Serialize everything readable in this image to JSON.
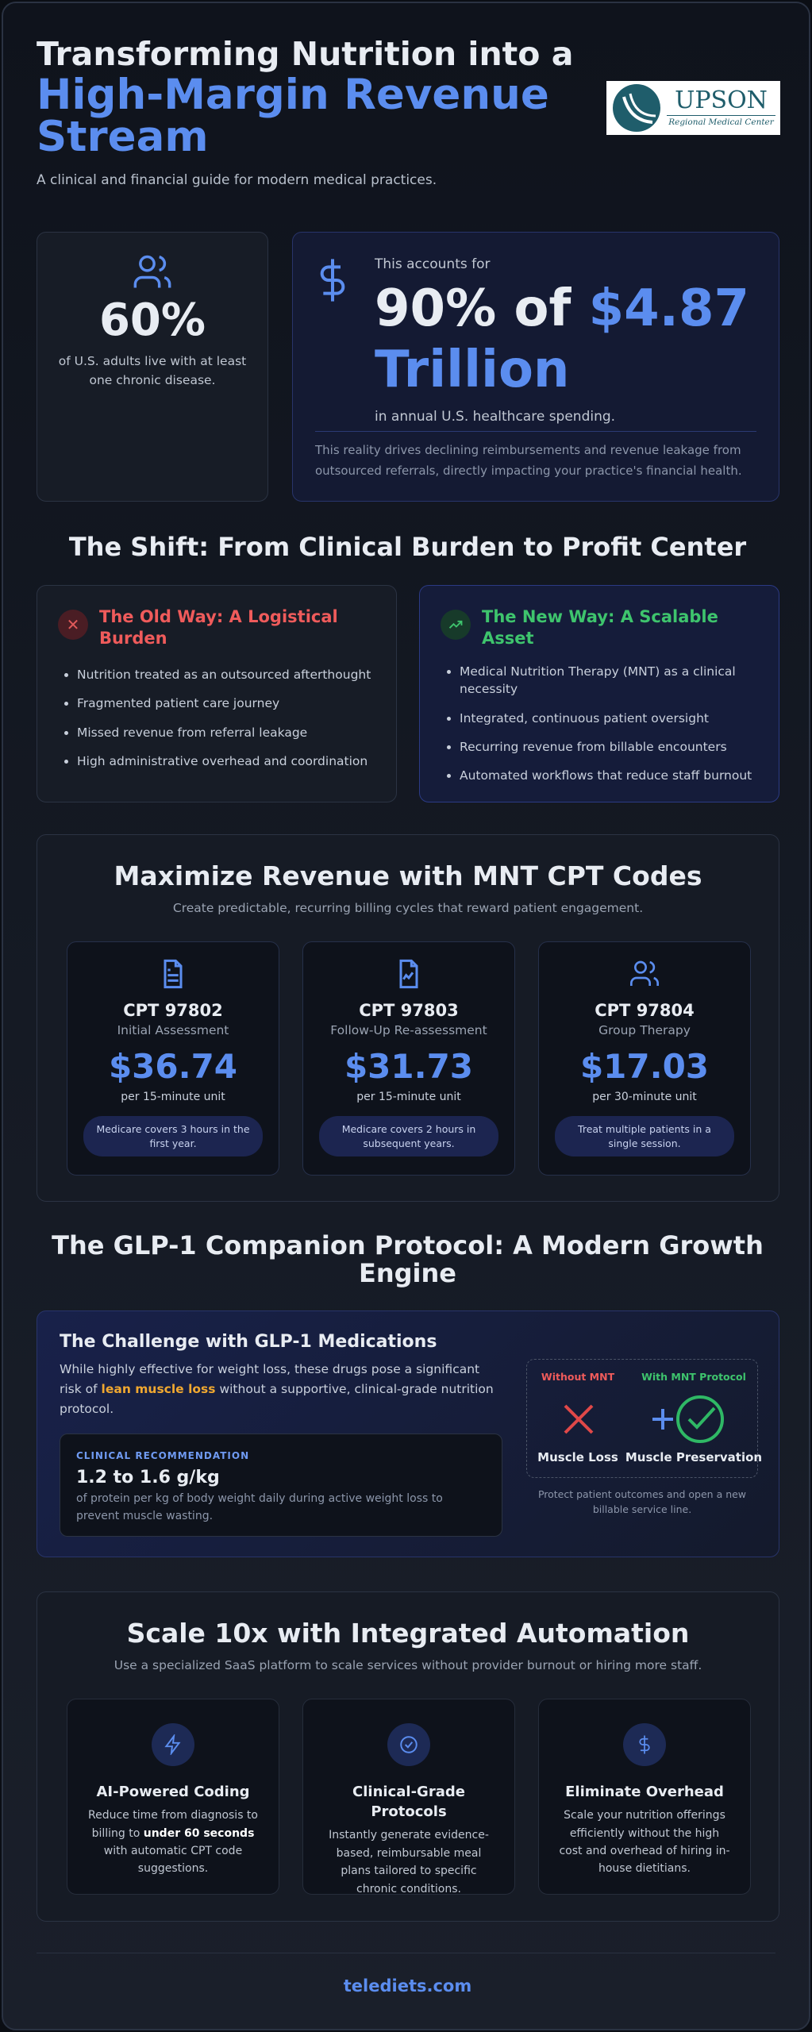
{
  "header": {
    "title_line1": "Transforming Nutrition into a",
    "title_highlight": "High-Margin Revenue Stream",
    "subtitle": "A clinical and financial guide for modern medical practices.",
    "logo": {
      "name": "UPSON",
      "tagline": "Regional Medical Center"
    }
  },
  "stats": {
    "adults": {
      "value": "60%",
      "text": "of U.S. adults live with at least one chronic disease."
    },
    "spending": {
      "lead": "This accounts for",
      "value_prefix": "90% of",
      "value_highlight": "$4.87 Trillion",
      "text": "in annual U.S. healthcare spending.",
      "note": "This reality drives declining reimbursements and revenue leakage from outsourced referrals, directly impacting your practice's financial health."
    }
  },
  "shift": {
    "title": "The Shift: From Clinical Burden to Profit Center",
    "old": {
      "title": "The Old Way: A Logistical Burden",
      "items": [
        "Nutrition treated as an outsourced afterthought",
        "Fragmented patient care journey",
        "Missed revenue from referral leakage",
        "High administrative overhead and coordination"
      ]
    },
    "new": {
      "title": "The New Way: A Scalable Asset",
      "items": [
        "Medical Nutrition Therapy (MNT) as a clinical necessity",
        "Integrated, continuous patient oversight",
        "Recurring revenue from billable encounters",
        "Automated workflows that reduce staff burnout"
      ]
    }
  },
  "cpt": {
    "title": "Maximize Revenue with MNT CPT Codes",
    "subtitle": "Create predictable, recurring billing cycles that reward patient engagement.",
    "codes": [
      {
        "code": "CPT 97802",
        "name": "Initial Assessment",
        "price": "$36.74",
        "unit": "per 15-minute unit",
        "note": "Medicare covers 3 hours in the first year."
      },
      {
        "code": "CPT 97803",
        "name": "Follow-Up Re-assessment",
        "price": "$31.73",
        "unit": "per 15-minute unit",
        "note": "Medicare covers 2 hours in subsequent years."
      },
      {
        "code": "CPT 97804",
        "name": "Group Therapy",
        "price": "$17.03",
        "unit": "per 30-minute unit",
        "note": "Treat multiple patients in a single session."
      }
    ]
  },
  "glp1": {
    "title": "The GLP-1 Companion Protocol: A Modern Growth Engine",
    "challenge": {
      "title": "The Challenge with GLP-1 Medications",
      "text_before": "While highly effective for weight loss, these drugs pose a significant risk of",
      "highlight": "lean muscle loss",
      "text_after": "without a supportive, clinical-grade nutrition protocol."
    },
    "recommendation": {
      "label": "CLINICAL RECOMMENDATION",
      "value": "1.2 to 1.6 g/kg",
      "text": "of protein per kg of body weight daily during active weight loss to prevent muscle wasting."
    },
    "comparison": {
      "without": "Without MNT",
      "with": "With MNT Protocol",
      "loss": "Muscle Loss",
      "preservation": "Muscle Preservation",
      "caption": "Protect patient outcomes and open a new billable service line."
    }
  },
  "automation": {
    "title": "Scale 10x with Integrated Automation",
    "subtitle": "Use a specialized SaaS platform to scale services without provider burnout or hiring more staff.",
    "features": [
      {
        "title": "AI-Powered Coding",
        "text_before": "Reduce time from diagnosis to billing to",
        "highlight": "under 60 seconds",
        "text_after": "with automatic CPT code suggestions."
      },
      {
        "title": "Clinical-Grade Protocols",
        "text": "Instantly generate evidence-based, reimbursable meal plans tailored to specific chronic conditions."
      },
      {
        "title": "Eliminate Overhead",
        "text": "Scale your nutrition offerings efficiently without the high cost and overhead of hiring in-house dietitians."
      }
    ]
  },
  "footer": {
    "link": "telediets.com"
  }
}
